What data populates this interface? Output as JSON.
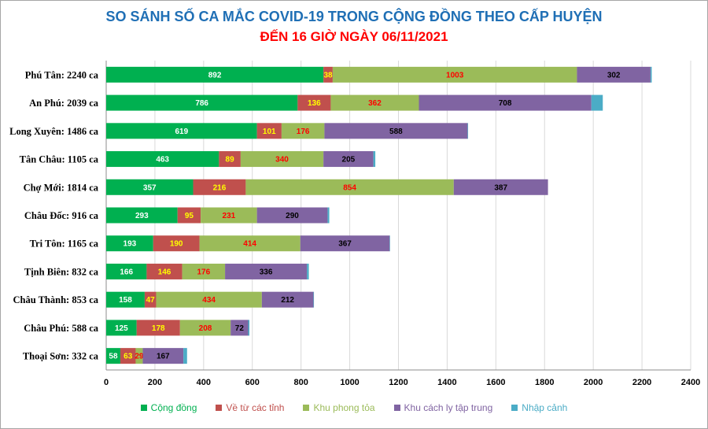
{
  "chart_data": {
    "type": "bar",
    "orientation": "horizontal",
    "stacked": true,
    "title": "SO SÁNH SỐ CA MẮC COVID-19 TRONG CỘNG ĐỒNG THEO CẤP HUYỆN",
    "subtitle": "ĐẾN 16 GIỜ NGÀY 06/11/2021",
    "categories": [
      "Phú Tân: 2240 ca",
      "An Phú: 2039 ca",
      "Long Xuyên: 1486 ca",
      "Tân Châu: 1105 ca",
      "Chợ Mới: 1814 ca",
      "Châu Đốc: 916 ca",
      "Tri Tôn:  1165 ca",
      "Tịnh Biên: 832 ca",
      "Châu Thành: 853 ca",
      "Châu Phú: 588 ca",
      "Thoại  Sơn: 332 ca"
    ],
    "series": [
      {
        "name": "Cộng đồng",
        "color": "#00b050",
        "label_color": "#ffffff",
        "values": [
          892,
          786,
          619,
          463,
          357,
          293,
          193,
          166,
          158,
          125,
          58
        ]
      },
      {
        "name": "Về từ các tỉnh",
        "color": "#c0504d",
        "label_color": "#ffff00",
        "values": [
          38,
          136,
          101,
          89,
          216,
          95,
          190,
          146,
          47,
          178,
          63
        ]
      },
      {
        "name": "Khu phong tỏa",
        "color": "#9bbb59",
        "label_color": "#ff0000",
        "values": [
          1003,
          362,
          176,
          340,
          854,
          231,
          414,
          176,
          434,
          208,
          29
        ]
      },
      {
        "name": "Khu cách ly tập trung",
        "color": "#8064a2",
        "label_color": "#000000",
        "values": [
          302,
          708,
          588,
          205,
          387,
          290,
          367,
          336,
          212,
          72,
          167
        ]
      },
      {
        "name": "Nhập cảnh",
        "color": "#4bacc6",
        "label_color": "#000000",
        "values": [
          5,
          47,
          2,
          8,
          0,
          7,
          1,
          8,
          2,
          5,
          15
        ],
        "show_labels": false
      }
    ],
    "xlim": [
      0,
      2400
    ],
    "x_ticks": [
      0,
      200,
      400,
      600,
      800,
      1000,
      1200,
      1400,
      1600,
      1800,
      2000,
      2200,
      2400
    ],
    "grid": true,
    "legend_position": "bottom"
  }
}
